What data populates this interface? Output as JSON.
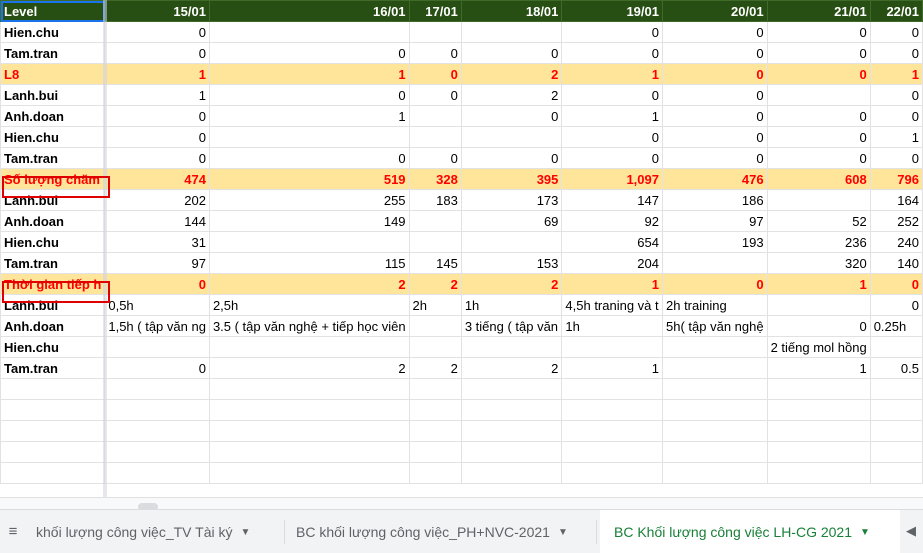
{
  "sheet": {
    "header": [
      "Level",
      "15/01",
      "16/01",
      "17/01",
      "18/01",
      "19/01",
      "20/01",
      "21/01",
      "22/01"
    ],
    "rows": [
      {
        "type": "normal",
        "cells": [
          "Hien.chu",
          "0",
          "",
          "",
          "",
          "0",
          "0",
          "0",
          "0"
        ]
      },
      {
        "type": "normal",
        "cells": [
          "Tam.tran",
          "0",
          "0",
          "0",
          "0",
          "0",
          "0",
          "0",
          "0"
        ]
      },
      {
        "type": "sum",
        "cells": [
          "L8",
          "1",
          "1",
          "0",
          "2",
          "1",
          "0",
          "0",
          "1"
        ]
      },
      {
        "type": "normal",
        "cells": [
          "Lanh.bui",
          "1",
          "0",
          "0",
          "2",
          "0",
          "0",
          "",
          "0"
        ]
      },
      {
        "type": "normal",
        "cells": [
          "Anh.doan",
          "0",
          "1",
          "",
          "0",
          "1",
          "0",
          "0",
          "0"
        ]
      },
      {
        "type": "normal",
        "cells": [
          "Hien.chu",
          "0",
          "",
          "",
          "",
          "0",
          "0",
          "0",
          "1"
        ]
      },
      {
        "type": "normal",
        "cells": [
          "Tam.tran",
          "0",
          "0",
          "0",
          "0",
          "0",
          "0",
          "0",
          "0"
        ]
      },
      {
        "type": "sum",
        "cells": [
          "Số lượng chăm",
          "474",
          "519",
          "328",
          "395",
          "1,097",
          "476",
          "608",
          "796"
        ]
      },
      {
        "type": "normal",
        "cells": [
          "Lanh.bui",
          "202",
          "255",
          "183",
          "173",
          "147",
          "186",
          "",
          "164"
        ]
      },
      {
        "type": "normal",
        "cells": [
          "Anh.doan",
          "144",
          "149",
          "",
          "69",
          "92",
          "97",
          "52",
          "252"
        ]
      },
      {
        "type": "normal",
        "cells": [
          "Hien.chu",
          "31",
          "",
          "",
          "",
          "654",
          "193",
          "236",
          "240"
        ]
      },
      {
        "type": "normal",
        "cells": [
          "Tam.tran",
          "97",
          "115",
          "145",
          "153",
          "204",
          "",
          "320",
          "140"
        ]
      },
      {
        "type": "sum",
        "cells": [
          "Thời gian tiếp h",
          "0",
          "2",
          "2",
          "2",
          "1",
          "0",
          "1",
          "0"
        ]
      },
      {
        "type": "text",
        "cells": [
          "Lanh.bui",
          "0,5h",
          "2,5h",
          "2h",
          "1h",
          "4,5h traning và t",
          "2h training",
          "",
          "0"
        ]
      },
      {
        "type": "text",
        "cells": [
          "Anh.doan",
          "1,5h ( tập văn ng",
          "3.5 ( tập văn nghệ + tiếp học viên",
          "",
          "3 tiếng ( tập văn",
          "1h",
          "5h( tập văn nghệ",
          "0",
          "0.25h"
        ]
      },
      {
        "type": "text",
        "cells": [
          "Hien.chu",
          "",
          "",
          "",
          "",
          "",
          "",
          "2 tiếng mol hồng",
          ""
        ]
      },
      {
        "type": "text",
        "cells": [
          "Tam.tran",
          "0",
          "2",
          "2",
          "2",
          "1",
          "",
          "1",
          "0.5"
        ]
      }
    ]
  },
  "tabs": [
    {
      "label": "khối lượng công việc_TV Tài ký",
      "active": false
    },
    {
      "label": "BC khối lượng công việc_PH+NVC-2021",
      "active": false
    },
    {
      "label": "BC Khối lượng công việc LH-CG 2021",
      "active": true
    }
  ],
  "icons": {
    "menu": "sheets-menu-icon",
    "caret": "caret-down-icon",
    "nav": "scroll-tabs-left-icon"
  },
  "colors": {
    "header_bg": "#274e13",
    "sum_bg": "#ffe599",
    "sum_text": "#ff0000",
    "active_tab_text": "#188038",
    "highlight": "#e00000"
  }
}
